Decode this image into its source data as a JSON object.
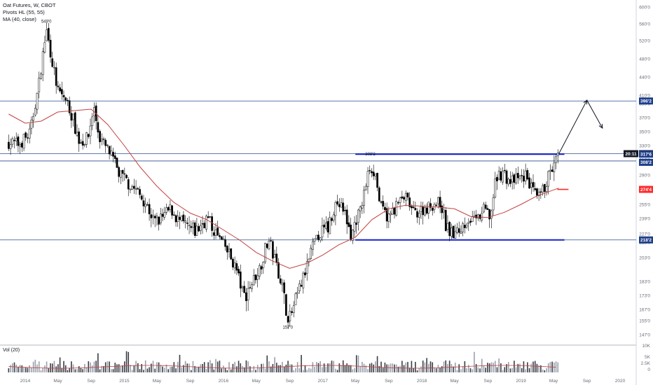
{
  "legend": {
    "title": "Oat Futures, W, CBOT",
    "indicator1": "Pivots HL (55, 55)",
    "indicator2": "MA (40, close)"
  },
  "volume_legend": "Vol (20)",
  "colors": {
    "up": "#ffffff",
    "down": "#000000",
    "wick": "#000000",
    "ma": "#c2413f",
    "hline": "#2a4f8f",
    "channel": "#1623c8",
    "support": "#ff2a2a",
    "badge_blue": "#1e3f8a",
    "badge_red": "#ff2a2a",
    "badge_black": "#131722"
  },
  "chart_data": {
    "type": "candlestick",
    "title": "Oat Futures, W, CBOT",
    "x_ticks": [
      "2014",
      "May",
      "Sep",
      "2015",
      "May",
      "Sep",
      "2016",
      "May",
      "Sep",
      "2017",
      "May",
      "Sep",
      "2018",
      "May",
      "Sep",
      "2019",
      "May",
      "Sep",
      "2020"
    ],
    "y_ticks": [
      "600'0",
      "560'0",
      "520'0",
      "480'0",
      "440'0",
      "410'0",
      "390'0",
      "370'0",
      "350'0",
      "330'0",
      "310'0",
      "290'0",
      "275'0",
      "255'0",
      "239'0",
      "227'0",
      "215'0",
      "203'0",
      "183'0",
      "173'0",
      "167'0",
      "155'0",
      "147'0"
    ],
    "volume_ticks": [
      "10K",
      "5K",
      "2.5K",
      "0"
    ],
    "pivot_labels": [
      {
        "text": "549'0",
        "value": 549
      },
      {
        "text": "308'2",
        "value": 308.25
      },
      {
        "text": "157'0",
        "value": 157
      }
    ],
    "horizontal_levels": [
      {
        "label": "396'2",
        "value": 396.25,
        "style": "resistance"
      },
      {
        "label": "318'4",
        "value": 318.5,
        "style": "current-price",
        "countdown": "20:11"
      },
      {
        "label": "317'6",
        "value": 317.75,
        "style": "channel-top"
      },
      {
        "label": "308'2",
        "value": 308.25,
        "style": "level"
      },
      {
        "label": "274'4",
        "value": 274.5,
        "style": "support"
      },
      {
        "label": "218'2",
        "value": 218.25,
        "style": "channel-bottom"
      }
    ],
    "projection": {
      "from_date": "2019-05-20",
      "from_value": 318,
      "peak_date": "2019-09-01",
      "peak_value": 398,
      "end_date": "2019-10-28",
      "end_value": 355
    },
    "price_path": [
      {
        "d": "2013-11-01",
        "v": 335
      },
      {
        "d": "2013-12-10",
        "v": 332
      },
      {
        "d": "2014-01-20",
        "v": 348
      },
      {
        "d": "2014-02-20",
        "v": 425
      },
      {
        "d": "2014-03-20",
        "v": 545
      },
      {
        "d": "2014-04-15",
        "v": 460
      },
      {
        "d": "2014-05-01",
        "v": 415
      },
      {
        "d": "2014-05-25",
        "v": 405
      },
      {
        "d": "2014-06-20",
        "v": 375
      },
      {
        "d": "2014-07-20",
        "v": 335
      },
      {
        "d": "2014-08-20",
        "v": 340
      },
      {
        "d": "2014-09-10",
        "v": 385
      },
      {
        "d": "2014-10-01",
        "v": 342
      },
      {
        "d": "2014-11-10",
        "v": 318
      },
      {
        "d": "2014-12-15",
        "v": 290
      },
      {
        "d": "2015-02-10",
        "v": 275
      },
      {
        "d": "2015-03-20",
        "v": 257
      },
      {
        "d": "2015-04-20",
        "v": 236
      },
      {
        "d": "2015-05-20",
        "v": 240
      },
      {
        "d": "2015-06-20",
        "v": 250
      },
      {
        "d": "2015-07-20",
        "v": 237
      },
      {
        "d": "2015-08-20",
        "v": 232
      },
      {
        "d": "2015-09-20",
        "v": 228
      },
      {
        "d": "2015-11-01",
        "v": 240
      },
      {
        "d": "2015-12-01",
        "v": 228
      },
      {
        "d": "2016-01-15",
        "v": 208
      },
      {
        "d": "2016-02-15",
        "v": 195
      },
      {
        "d": "2016-03-15",
        "v": 172
      },
      {
        "d": "2016-04-15",
        "v": 182
      },
      {
        "d": "2016-05-15",
        "v": 195
      },
      {
        "d": "2016-06-15",
        "v": 218
      },
      {
        "d": "2016-07-10",
        "v": 200
      },
      {
        "d": "2016-08-01",
        "v": 183
      },
      {
        "d": "2016-08-25",
        "v": 158
      },
      {
        "d": "2016-09-20",
        "v": 168
      },
      {
        "d": "2016-10-20",
        "v": 185
      },
      {
        "d": "2016-11-20",
        "v": 208
      },
      {
        "d": "2016-12-20",
        "v": 226
      },
      {
        "d": "2017-01-20",
        "v": 232
      },
      {
        "d": "2017-02-20",
        "v": 258
      },
      {
        "d": "2017-03-20",
        "v": 248
      },
      {
        "d": "2017-04-15",
        "v": 222
      },
      {
        "d": "2017-05-01",
        "v": 238
      },
      {
        "d": "2017-05-20",
        "v": 248
      },
      {
        "d": "2017-06-10",
        "v": 282
      },
      {
        "d": "2017-06-25",
        "v": 302
      },
      {
        "d": "2017-07-15",
        "v": 290
      },
      {
        "d": "2017-08-01",
        "v": 252
      },
      {
        "d": "2017-09-01",
        "v": 240
      },
      {
        "d": "2017-10-01",
        "v": 255
      },
      {
        "d": "2017-11-01",
        "v": 265
      },
      {
        "d": "2017-12-01",
        "v": 245
      },
      {
        "d": "2018-01-10",
        "v": 250
      },
      {
        "d": "2018-02-10",
        "v": 255
      },
      {
        "d": "2018-03-10",
        "v": 258
      },
      {
        "d": "2018-04-01",
        "v": 232
      },
      {
        "d": "2018-04-25",
        "v": 224
      },
      {
        "d": "2018-05-20",
        "v": 230
      },
      {
        "d": "2018-06-20",
        "v": 240
      },
      {
        "d": "2018-07-20",
        "v": 235
      },
      {
        "d": "2018-08-20",
        "v": 250
      },
      {
        "d": "2018-09-10",
        "v": 240
      },
      {
        "d": "2018-10-01",
        "v": 285
      },
      {
        "d": "2018-10-25",
        "v": 295
      },
      {
        "d": "2018-11-20",
        "v": 282
      },
      {
        "d": "2018-12-20",
        "v": 285
      },
      {
        "d": "2019-01-20",
        "v": 290
      },
      {
        "d": "2019-02-10",
        "v": 275
      },
      {
        "d": "2019-03-01",
        "v": 262
      },
      {
        "d": "2019-03-20",
        "v": 270
      },
      {
        "d": "2019-04-10",
        "v": 288
      },
      {
        "d": "2019-04-25",
        "v": 295
      },
      {
        "d": "2019-05-10",
        "v": 308
      },
      {
        "d": "2019-05-20",
        "v": 318
      }
    ],
    "ma_path": [
      {
        "d": "2013-11-01",
        "v": 375
      },
      {
        "d": "2014-01-01",
        "v": 362
      },
      {
        "d": "2014-03-01",
        "v": 365
      },
      {
        "d": "2014-05-01",
        "v": 378
      },
      {
        "d": "2014-07-01",
        "v": 380
      },
      {
        "d": "2014-09-01",
        "v": 382
      },
      {
        "d": "2014-11-01",
        "v": 360
      },
      {
        "d": "2015-01-01",
        "v": 330
      },
      {
        "d": "2015-03-01",
        "v": 300
      },
      {
        "d": "2015-05-01",
        "v": 278
      },
      {
        "d": "2015-07-01",
        "v": 258
      },
      {
        "d": "2015-09-01",
        "v": 245
      },
      {
        "d": "2015-11-01",
        "v": 238
      },
      {
        "d": "2016-01-01",
        "v": 230
      },
      {
        "d": "2016-03-01",
        "v": 218
      },
      {
        "d": "2016-05-01",
        "v": 207
      },
      {
        "d": "2016-07-01",
        "v": 200
      },
      {
        "d": "2016-09-01",
        "v": 194
      },
      {
        "d": "2016-11-01",
        "v": 198
      },
      {
        "d": "2017-01-01",
        "v": 205
      },
      {
        "d": "2017-03-01",
        "v": 213
      },
      {
        "d": "2017-05-01",
        "v": 222
      },
      {
        "d": "2017-07-01",
        "v": 238
      },
      {
        "d": "2017-09-01",
        "v": 250
      },
      {
        "d": "2017-11-01",
        "v": 254
      },
      {
        "d": "2018-01-01",
        "v": 253
      },
      {
        "d": "2018-03-01",
        "v": 252
      },
      {
        "d": "2018-05-01",
        "v": 250
      },
      {
        "d": "2018-07-01",
        "v": 241
      },
      {
        "d": "2018-09-01",
        "v": 240
      },
      {
        "d": "2018-11-01",
        "v": 246
      },
      {
        "d": "2019-01-01",
        "v": 255
      },
      {
        "d": "2019-03-01",
        "v": 266
      },
      {
        "d": "2019-05-20",
        "v": 276
      }
    ]
  }
}
